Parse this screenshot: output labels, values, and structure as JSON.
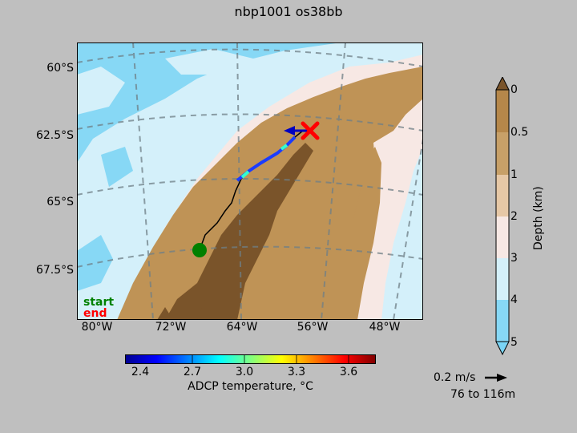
{
  "figure": {
    "title": "nbp1001 os38bb",
    "legend_start": "start",
    "legend_end": "end",
    "scale_label": "0.2 m/s",
    "depth_range_label": "76 to 116m",
    "colors": {
      "background": "#bfbfbf",
      "start_marker": "#008000",
      "end_marker": "#ff0000",
      "deep_water": "#87d8f5",
      "mid_water": "#d4f0fa",
      "shelf_light": "#f7e8e4",
      "shelf_tan": "#bf9356",
      "land_dark": "#7a542a"
    }
  },
  "chart_data": {
    "type": "map",
    "map": {
      "y_ticks": [
        "60°S",
        "62.5°S",
        "65°S",
        "67.5°S"
      ],
      "x_ticks": [
        "80°W",
        "72°W",
        "64°W",
        "56°W",
        "48°W"
      ]
    },
    "depth_colorbar": {
      "label": "Depth (km)",
      "ticks": [
        "0",
        "0.5",
        "1",
        "2",
        "3",
        "4",
        "5"
      ],
      "extend": "both"
    },
    "temperature_colorbar": {
      "label": "ADCP temperature, °C",
      "ticks": [
        "2.4",
        "2.7",
        "3.0",
        "3.3",
        "3.6"
      ],
      "range": [
        2.25,
        3.85
      ],
      "colormap": "jet"
    },
    "track": {
      "start": "start",
      "end": "end"
    }
  }
}
